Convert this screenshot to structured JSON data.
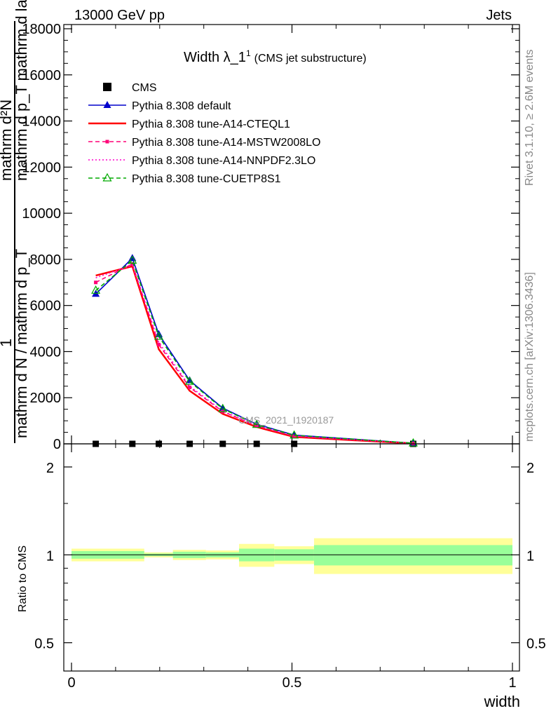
{
  "header": {
    "left": "13000 GeV pp",
    "right": "Jets"
  },
  "side_labels": {
    "rivet": "Rivet 3.1.10, ≥ 2.6M events",
    "mcplots": "mcplots.cern.ch [arXiv:1306.3436]"
  },
  "chart_data": {
    "type": "line",
    "title_main": "Width λ_1",
    "title_sup": "1",
    "title_note": "(CMS jet substructure)",
    "watermark": "CMS_2021_I1920187",
    "ylabel_top": "mathrm d²N",
    "ylabel_top2": "mathrm d p_T mathrm d lambda",
    "ylabel_num": "1",
    "ylabel_den": "mathrm d N / mathrm d p_T",
    "ratio_ylabel": "Ratio to CMS",
    "xlabel": "width",
    "xlim": [
      -0.02,
      1.02
    ],
    "ylim": [
      0,
      18000
    ],
    "yticks": [
      0,
      2000,
      4000,
      6000,
      8000,
      10000,
      12000,
      14000,
      16000,
      18000
    ],
    "ytick_labels": [
      "0",
      "2000",
      "4000",
      "6000",
      "8000",
      "10000",
      "12000",
      "14000",
      "16000",
      "18000"
    ],
    "xticks": [
      0,
      0.5,
      1
    ],
    "xtick_labels": [
      "0",
      "0.5",
      "1"
    ],
    "ratio_ylim_log": [
      0.4,
      2.4
    ],
    "ratio_yticks": [
      0.5,
      1,
      2
    ],
    "ratio_ytick_labels": [
      "0.5",
      "1",
      "2"
    ],
    "x": [
      0.055,
      0.138,
      0.198,
      0.268,
      0.343,
      0.42,
      0.505,
      0.775
    ],
    "series": [
      {
        "name": "CMS",
        "style": "data",
        "color": "#000000",
        "values": [
          0,
          0,
          0,
          0,
          0,
          0,
          0,
          0
        ]
      },
      {
        "name": "Pythia 8.308 default",
        "style": "solid",
        "color": "#0000cc",
        "marker": "triangle",
        "values": [
          6500,
          8050,
          4750,
          2750,
          1550,
          850,
          380,
          30
        ]
      },
      {
        "name": "Pythia 8.308 tune-A14-CTEQL1",
        "style": "solid",
        "color": "#ff0000",
        "marker": "none",
        "values": [
          7300,
          7700,
          4100,
          2300,
          1300,
          730,
          300,
          15
        ]
      },
      {
        "name": "Pythia 8.308 tune-A14-MSTW2008LO",
        "style": "dashed",
        "color": "#ff0077",
        "marker": "square",
        "values": [
          7000,
          7800,
          4300,
          2450,
          1400,
          780,
          330,
          20
        ]
      },
      {
        "name": "Pythia 8.308 tune-A14-NNPDF2.3LO",
        "style": "dotted",
        "color": "#ff00cc",
        "marker": "none",
        "values": [
          7200,
          7750,
          4400,
          2500,
          1420,
          790,
          340,
          20
        ]
      },
      {
        "name": "Pythia 8.308 tune-CUETP8S1",
        "style": "dashed",
        "color": "#00aa00",
        "marker": "open-triangle",
        "values": [
          6650,
          7950,
          4650,
          2700,
          1520,
          830,
          370,
          28
        ]
      }
    ],
    "ratio_bands": [
      {
        "x0": 0.0,
        "x1": 0.165,
        "green": [
          0.97,
          1.03
        ],
        "yellow": [
          0.95,
          1.05
        ]
      },
      {
        "x0": 0.165,
        "x1": 0.23,
        "green": [
          0.99,
          1.01
        ],
        "yellow": [
          0.98,
          1.02
        ]
      },
      {
        "x0": 0.23,
        "x1": 0.305,
        "green": [
          0.975,
          1.025
        ],
        "yellow": [
          0.96,
          1.04
        ]
      },
      {
        "x0": 0.305,
        "x1": 0.38,
        "green": [
          0.98,
          1.02
        ],
        "yellow": [
          0.965,
          1.035
        ]
      },
      {
        "x0": 0.38,
        "x1": 0.46,
        "green": [
          0.95,
          1.05
        ],
        "yellow": [
          0.91,
          1.09
        ]
      },
      {
        "x0": 0.46,
        "x1": 0.55,
        "green": [
          0.955,
          1.045
        ],
        "yellow": [
          0.93,
          1.07
        ]
      },
      {
        "x0": 0.55,
        "x1": 1.0,
        "green": [
          0.92,
          1.08
        ],
        "yellow": [
          0.86,
          1.14
        ]
      }
    ],
    "band_colors": {
      "green": "#99ff99",
      "yellow": "#ffff99"
    }
  }
}
